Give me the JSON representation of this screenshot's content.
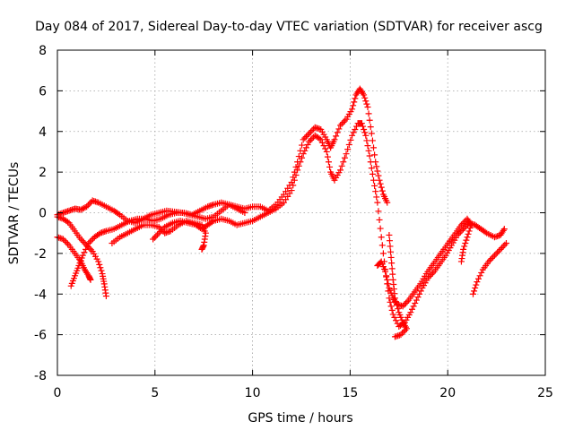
{
  "chart_data": {
    "type": "scatter",
    "title": "Day 084 of 2017, Sidereal Day-to-day VTEC variation (SDTVAR) for receiver ascg",
    "xlabel": "GPS time / hours",
    "ylabel": "SDTVAR / TECUs",
    "xlim": [
      0,
      25
    ],
    "ylim": [
      -8,
      8
    ],
    "x_ticks": [
      0,
      5,
      10,
      15,
      20,
      25
    ],
    "y_ticks": [
      -8,
      -6,
      -4,
      -2,
      0,
      2,
      4,
      6,
      8
    ],
    "x_tick_labels": [
      "0",
      "5",
      "10",
      "15",
      "20",
      "25"
    ],
    "y_tick_labels": [
      "-8",
      "-6",
      "-4",
      "-2",
      "0",
      "2",
      "4",
      "6",
      "8"
    ],
    "grid": true,
    "marker": "+",
    "color": "#ff0000",
    "series": [
      {
        "points": [
          [
            0.0,
            -0.1
          ],
          [
            0.3,
            0.0
          ],
          [
            0.6,
            0.1
          ],
          [
            0.9,
            0.2
          ],
          [
            1.2,
            0.15
          ],
          [
            1.5,
            0.3
          ],
          [
            1.8,
            0.6
          ],
          [
            2.1,
            0.5
          ],
          [
            2.5,
            0.3
          ],
          [
            2.9,
            0.1
          ],
          [
            3.2,
            -0.1
          ],
          [
            3.6,
            -0.4
          ],
          [
            4.0,
            -0.5
          ],
          [
            4.4,
            -0.3
          ],
          [
            4.8,
            -0.1
          ],
          [
            5.2,
            0.0
          ],
          [
            5.6,
            0.1
          ],
          [
            6.0,
            0.05
          ],
          [
            6.4,
            0.0
          ],
          [
            6.8,
            -0.1
          ],
          [
            7.2,
            -0.2
          ],
          [
            7.6,
            -0.3
          ],
          [
            8.0,
            -0.2
          ],
          [
            8.4,
            0.1
          ],
          [
            8.8,
            0.4
          ],
          [
            9.2,
            0.3
          ],
          [
            9.6,
            0.2
          ],
          [
            10.0,
            0.3
          ],
          [
            10.4,
            0.3
          ],
          [
            10.8,
            0.1
          ],
          [
            11.2,
            0.4
          ],
          [
            11.6,
            0.9
          ],
          [
            12.0,
            1.5
          ],
          [
            12.3,
            2.5
          ],
          [
            12.6,
            3.6
          ],
          [
            12.9,
            3.9
          ],
          [
            13.2,
            4.2
          ],
          [
            13.5,
            4.1
          ],
          [
            13.8,
            3.6
          ],
          [
            14.0,
            3.2
          ],
          [
            14.2,
            3.6
          ],
          [
            14.5,
            4.3
          ],
          [
            14.8,
            4.6
          ],
          [
            15.1,
            5.1
          ],
          [
            15.3,
            5.8
          ],
          [
            15.5,
            6.1
          ],
          [
            15.7,
            5.8
          ],
          [
            15.9,
            5.2
          ],
          [
            16.1,
            3.9
          ],
          [
            16.3,
            2.5
          ],
          [
            16.5,
            1.6
          ],
          [
            16.7,
            0.9
          ],
          [
            16.9,
            0.5
          ]
        ]
      },
      {
        "points": [
          [
            0.0,
            -0.2
          ],
          [
            0.3,
            -0.3
          ],
          [
            0.6,
            -0.5
          ],
          [
            0.9,
            -0.9
          ],
          [
            1.2,
            -1.3
          ],
          [
            1.5,
            -1.6
          ],
          [
            1.8,
            -1.9
          ],
          [
            2.1,
            -2.4
          ],
          [
            2.3,
            -3.0
          ],
          [
            2.4,
            -3.5
          ],
          [
            2.5,
            -4.1
          ]
        ]
      },
      {
        "points": [
          [
            0.0,
            -1.2
          ],
          [
            0.3,
            -1.3
          ],
          [
            0.6,
            -1.6
          ],
          [
            0.9,
            -2.0
          ],
          [
            1.2,
            -2.4
          ],
          [
            1.4,
            -2.8
          ],
          [
            1.6,
            -3.1
          ],
          [
            1.7,
            -3.3
          ]
        ]
      },
      {
        "points": [
          [
            0.7,
            -3.6
          ],
          [
            0.9,
            -3.1
          ],
          [
            1.1,
            -2.6
          ],
          [
            1.3,
            -2.1
          ],
          [
            1.6,
            -1.5
          ],
          [
            1.9,
            -1.2
          ],
          [
            2.2,
            -1.0
          ],
          [
            2.5,
            -0.9
          ],
          [
            2.9,
            -0.8
          ],
          [
            3.3,
            -0.6
          ],
          [
            3.7,
            -0.4
          ],
          [
            4.1,
            -0.3
          ],
          [
            4.5,
            -0.3
          ],
          [
            4.9,
            -0.4
          ],
          [
            5.3,
            -0.3
          ],
          [
            5.7,
            -0.1
          ],
          [
            6.1,
            0.0
          ],
          [
            6.5,
            0.0
          ],
          [
            6.9,
            -0.1
          ],
          [
            7.3,
            0.1
          ],
          [
            7.7,
            0.3
          ],
          [
            8.0,
            0.4
          ],
          [
            8.4,
            0.5
          ],
          [
            8.8,
            0.4
          ],
          [
            9.2,
            0.2
          ],
          [
            9.6,
            0.0
          ]
        ]
      },
      {
        "points": [
          [
            2.8,
            -1.5
          ],
          [
            3.2,
            -1.2
          ],
          [
            3.6,
            -1.0
          ],
          [
            4.0,
            -0.8
          ],
          [
            4.4,
            -0.6
          ],
          [
            4.8,
            -0.6
          ],
          [
            5.2,
            -0.7
          ],
          [
            5.5,
            -1.0
          ],
          [
            5.8,
            -0.9
          ],
          [
            6.2,
            -0.6
          ],
          [
            6.6,
            -0.4
          ],
          [
            7.0,
            -0.5
          ],
          [
            7.4,
            -0.6
          ],
          [
            7.6,
            -1.0
          ],
          [
            7.5,
            -1.6
          ],
          [
            7.4,
            -1.8
          ]
        ]
      },
      {
        "points": [
          [
            4.9,
            -1.3
          ],
          [
            5.2,
            -1.0
          ],
          [
            5.5,
            -0.7
          ],
          [
            5.9,
            -0.5
          ],
          [
            6.3,
            -0.4
          ],
          [
            6.7,
            -0.5
          ],
          [
            7.1,
            -0.6
          ],
          [
            7.4,
            -0.8
          ],
          [
            7.7,
            -0.6
          ],
          [
            8.0,
            -0.4
          ],
          [
            8.4,
            -0.3
          ],
          [
            8.8,
            -0.4
          ],
          [
            9.2,
            -0.6
          ],
          [
            9.6,
            -0.5
          ],
          [
            10.0,
            -0.4
          ],
          [
            10.4,
            -0.2
          ],
          [
            10.8,
            0.0
          ],
          [
            11.2,
            0.2
          ],
          [
            11.6,
            0.5
          ],
          [
            12.0,
            1.1
          ],
          [
            12.3,
            2.1
          ],
          [
            12.6,
            2.9
          ],
          [
            12.9,
            3.5
          ],
          [
            13.2,
            3.8
          ],
          [
            13.5,
            3.6
          ],
          [
            13.8,
            3.0
          ],
          [
            14.0,
            2.0
          ],
          [
            14.2,
            1.6
          ],
          [
            14.5,
            2.1
          ],
          [
            14.8,
            2.9
          ],
          [
            15.1,
            3.8
          ],
          [
            15.4,
            4.4
          ],
          [
            15.6,
            4.4
          ],
          [
            15.8,
            3.8
          ],
          [
            16.0,
            2.8
          ],
          [
            16.2,
            1.6
          ],
          [
            16.4,
            0.5
          ],
          [
            16.6,
            -1.2
          ],
          [
            16.8,
            -2.8
          ],
          [
            17.0,
            -4.2
          ],
          [
            17.2,
            -5.0
          ],
          [
            17.5,
            -5.6
          ],
          [
            17.8,
            -5.4
          ],
          [
            18.1,
            -4.9
          ],
          [
            18.4,
            -4.3
          ],
          [
            18.7,
            -3.7
          ],
          [
            19.0,
            -3.2
          ],
          [
            19.3,
            -2.9
          ],
          [
            19.6,
            -2.5
          ],
          [
            19.9,
            -2.1
          ],
          [
            20.2,
            -1.6
          ],
          [
            20.5,
            -1.1
          ],
          [
            20.8,
            -0.8
          ],
          [
            21.1,
            -0.5
          ],
          [
            21.4,
            -0.6
          ],
          [
            21.7,
            -0.8
          ],
          [
            22.0,
            -1.0
          ],
          [
            22.4,
            -1.2
          ],
          [
            22.7,
            -1.1
          ],
          [
            22.9,
            -0.8
          ]
        ]
      },
      {
        "points": [
          [
            16.4,
            -2.6
          ],
          [
            16.6,
            -2.4
          ],
          [
            16.8,
            -2.9
          ],
          [
            17.0,
            -3.7
          ],
          [
            17.2,
            -4.2
          ],
          [
            17.4,
            -4.5
          ],
          [
            17.7,
            -4.6
          ],
          [
            18.0,
            -4.3
          ],
          [
            18.3,
            -3.9
          ],
          [
            18.6,
            -3.5
          ],
          [
            18.9,
            -3.0
          ],
          [
            19.2,
            -2.6
          ],
          [
            19.5,
            -2.2
          ],
          [
            19.8,
            -1.8
          ],
          [
            20.1,
            -1.4
          ],
          [
            20.4,
            -1.0
          ],
          [
            20.7,
            -0.6
          ],
          [
            21.0,
            -0.3
          ],
          [
            21.2,
            -0.6
          ],
          [
            21.0,
            -1.2
          ],
          [
            20.8,
            -1.8
          ],
          [
            20.7,
            -2.4
          ]
        ]
      },
      {
        "points": [
          [
            17.0,
            -1.1
          ],
          [
            17.1,
            -2.2
          ],
          [
            17.2,
            -3.3
          ],
          [
            17.3,
            -4.2
          ],
          [
            17.5,
            -4.9
          ],
          [
            17.7,
            -5.4
          ],
          [
            17.9,
            -5.7
          ],
          [
            17.6,
            -6.0
          ],
          [
            17.3,
            -6.1
          ]
        ]
      },
      {
        "points": [
          [
            21.3,
            -4.0
          ],
          [
            21.5,
            -3.4
          ],
          [
            21.8,
            -2.8
          ],
          [
            22.1,
            -2.4
          ],
          [
            22.4,
            -2.1
          ],
          [
            22.7,
            -1.8
          ],
          [
            23.0,
            -1.5
          ]
        ]
      }
    ]
  }
}
